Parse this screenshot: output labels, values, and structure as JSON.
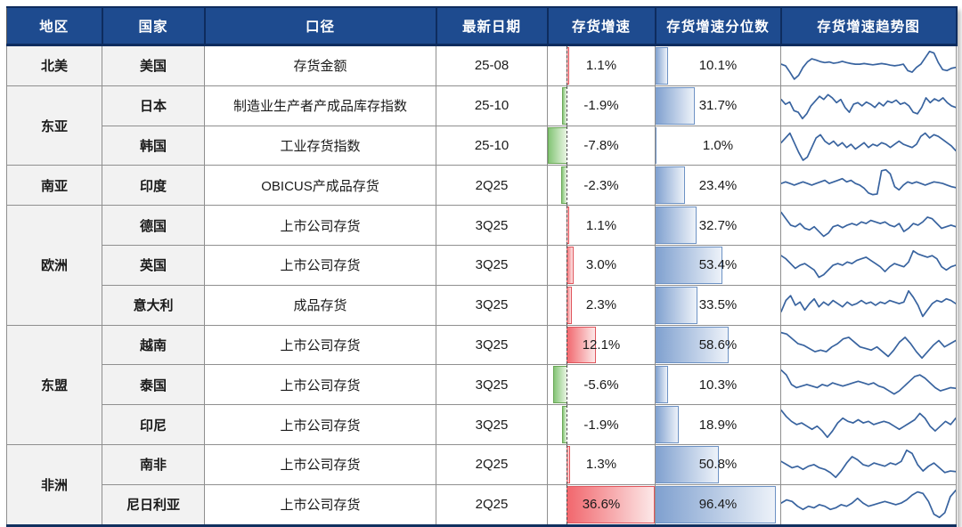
{
  "header": {
    "columns": [
      "地区",
      "国家",
      "口径",
      "最新日期",
      "存货增速",
      "存货增速分位数",
      "存货增速趋势图"
    ]
  },
  "colors": {
    "header_bg": "#1e4b8f",
    "header_divider": "#0e2c5e",
    "header_text": "#ffffff",
    "grid_line": "#8f8f8f",
    "group_line": "#595959",
    "thick_line": "#11305f",
    "cell_gray": "#f2f2f2",
    "text": "#1a1a1a",
    "zero_axis": "#4a4a4a",
    "pos_bar_start": "#f1666c",
    "pos_bar_end": "#fce8e8",
    "pos_border": "#e0555c",
    "neg_bar_start": "#85c577",
    "neg_bar_end": "#e8f5e2",
    "neg_border": "#6ba757",
    "pct_bar_start": "#7fa0cf",
    "pct_bar_end": "#edf2f9",
    "pct_border": "#6d92c4",
    "spark": "#38639f"
  },
  "growth_axis": {
    "min": -7.8,
    "max": 36.6
  },
  "rows": [
    {
      "region": "北美",
      "region_span": 1,
      "country": "美国",
      "measure": "存货金额",
      "date": "25-08",
      "growth": 1.1,
      "growth_label": "1.1%",
      "percentile": 10.1,
      "percentile_label": "10.1%",
      "spark": [
        0.55,
        0.5,
        0.3,
        0.08,
        0.2,
        0.45,
        0.62,
        0.72,
        0.68,
        0.63,
        0.6,
        0.62,
        0.58,
        0.6,
        0.64,
        0.6,
        0.57,
        0.55,
        0.55,
        0.57,
        0.55,
        0.53,
        0.55,
        0.57,
        0.55,
        0.52,
        0.5,
        0.52,
        0.55,
        0.35,
        0.3,
        0.45,
        0.55,
        0.75,
        0.95,
        0.9,
        0.6,
        0.38,
        0.35,
        0.42,
        0.45
      ]
    },
    {
      "region": "东亚",
      "region_span": 2,
      "country": "日本",
      "measure": "制造业生产者产成品库存指数",
      "date": "25-10",
      "growth": -1.9,
      "growth_label": "-1.9%",
      "percentile": 31.7,
      "percentile_label": "31.7%",
      "spark": [
        0.7,
        0.55,
        0.62,
        0.35,
        0.3,
        0.1,
        0.25,
        0.5,
        0.65,
        0.8,
        0.7,
        0.85,
        0.75,
        0.6,
        0.7,
        0.45,
        0.3,
        0.55,
        0.6,
        0.5,
        0.62,
        0.55,
        0.45,
        0.6,
        0.5,
        0.65,
        0.6,
        0.68,
        0.55,
        0.6,
        0.5,
        0.3,
        0.25,
        0.45,
        0.75,
        0.6,
        0.72,
        0.65,
        0.75,
        0.6,
        0.5,
        0.45
      ]
    },
    {
      "country": "韩国",
      "measure": "工业存货指数",
      "date": "25-10",
      "growth": -7.8,
      "growth_label": "-7.8%",
      "percentile": 1.0,
      "percentile_label": "1.0%",
      "spark": [
        0.6,
        0.75,
        0.9,
        0.6,
        0.3,
        0.05,
        0.15,
        0.45,
        0.75,
        0.85,
        0.65,
        0.55,
        0.65,
        0.5,
        0.6,
        0.45,
        0.55,
        0.4,
        0.5,
        0.6,
        0.45,
        0.55,
        0.5,
        0.6,
        0.55,
        0.45,
        0.55,
        0.65,
        0.55,
        0.5,
        0.45,
        0.55,
        0.8,
        0.9,
        0.75,
        0.85,
        0.8,
        0.7,
        0.6,
        0.5,
        0.35
      ]
    },
    {
      "region": "南亚",
      "region_span": 1,
      "country": "印度",
      "measure": "OBICUS产成品存货",
      "date": "2Q25",
      "growth": -2.3,
      "growth_label": "-2.3%",
      "percentile": 23.4,
      "percentile_label": "23.4%",
      "spark": [
        0.55,
        0.6,
        0.55,
        0.5,
        0.55,
        0.6,
        0.55,
        0.5,
        0.55,
        0.6,
        0.65,
        0.55,
        0.6,
        0.65,
        0.7,
        0.6,
        0.65,
        0.55,
        0.5,
        0.4,
        0.25,
        0.2,
        0.22,
        0.95,
        0.98,
        0.85,
        0.45,
        0.35,
        0.5,
        0.6,
        0.55,
        0.6,
        0.55,
        0.5,
        0.55,
        0.6,
        0.58,
        0.55,
        0.5,
        0.45,
        0.42
      ]
    },
    {
      "region": "欧洲",
      "region_span": 3,
      "country": "德国",
      "measure": "上市公司存货",
      "date": "3Q25",
      "growth": 1.1,
      "growth_label": "1.1%",
      "percentile": 32.7,
      "percentile_label": "32.7%",
      "spark": [
        0.9,
        0.7,
        0.5,
        0.45,
        0.55,
        0.4,
        0.35,
        0.45,
        0.3,
        0.15,
        0.25,
        0.45,
        0.5,
        0.42,
        0.5,
        0.55,
        0.5,
        0.6,
        0.55,
        0.65,
        0.6,
        0.55,
        0.6,
        0.5,
        0.45,
        0.55,
        0.3,
        0.4,
        0.55,
        0.5,
        0.6,
        0.75,
        0.7,
        0.55,
        0.4,
        0.45,
        0.5,
        0.45
      ]
    },
    {
      "country": "英国",
      "measure": "上市公司存货",
      "date": "3Q25",
      "growth": 3.0,
      "growth_label": "3.0%",
      "percentile": 53.4,
      "percentile_label": "53.4%",
      "spark": [
        0.8,
        0.7,
        0.55,
        0.4,
        0.5,
        0.55,
        0.45,
        0.35,
        0.12,
        0.2,
        0.35,
        0.5,
        0.55,
        0.5,
        0.6,
        0.55,
        0.65,
        0.7,
        0.75,
        0.65,
        0.55,
        0.45,
        0.3,
        0.45,
        0.55,
        0.5,
        0.45,
        0.6,
        0.95,
        0.85,
        0.8,
        0.75,
        0.8,
        0.7,
        0.45,
        0.35,
        0.45,
        0.5
      ]
    },
    {
      "country": "意大利",
      "measure": "成品存货",
      "date": "3Q25",
      "growth": 2.3,
      "growth_label": "2.3%",
      "percentile": 33.5,
      "percentile_label": "33.5%",
      "spark": [
        0.3,
        0.65,
        0.8,
        0.5,
        0.6,
        0.35,
        0.55,
        0.7,
        0.45,
        0.6,
        0.5,
        0.65,
        0.55,
        0.45,
        0.6,
        0.5,
        0.55,
        0.65,
        0.55,
        0.6,
        0.5,
        0.6,
        0.55,
        0.65,
        0.6,
        0.55,
        0.6,
        0.95,
        0.75,
        0.5,
        0.15,
        0.35,
        0.55,
        0.65,
        0.6,
        0.7,
        0.65,
        0.55
      ]
    },
    {
      "region": "东盟",
      "region_span": 3,
      "country": "越南",
      "measure": "上市公司存货",
      "date": "3Q25",
      "growth": 12.1,
      "growth_label": "12.1%",
      "percentile": 58.6,
      "percentile_label": "58.6%",
      "spark": [
        0.9,
        0.85,
        0.7,
        0.55,
        0.5,
        0.4,
        0.3,
        0.35,
        0.3,
        0.45,
        0.55,
        0.7,
        0.75,
        0.6,
        0.45,
        0.4,
        0.35,
        0.45,
        0.3,
        0.15,
        0.35,
        0.6,
        0.75,
        0.55,
        0.3,
        0.1,
        0.3,
        0.5,
        0.65,
        0.45,
        0.55,
        0.65
      ]
    },
    {
      "country": "泰国",
      "measure": "上市公司存货",
      "date": "3Q25",
      "growth": -5.6,
      "growth_label": "-5.6%",
      "percentile": 10.3,
      "percentile_label": "10.3%",
      "spark": [
        0.95,
        0.8,
        0.5,
        0.4,
        0.45,
        0.5,
        0.45,
        0.4,
        0.5,
        0.45,
        0.55,
        0.5,
        0.45,
        0.5,
        0.55,
        0.6,
        0.55,
        0.5,
        0.55,
        0.45,
        0.4,
        0.3,
        0.2,
        0.3,
        0.45,
        0.6,
        0.75,
        0.8,
        0.7,
        0.55,
        0.4,
        0.3,
        0.35,
        0.4,
        0.38
      ]
    },
    {
      "country": "印尼",
      "measure": "上市公司存货",
      "date": "3Q25",
      "growth": -1.9,
      "growth_label": "-1.9%",
      "percentile": 18.9,
      "percentile_label": "18.9%",
      "spark": [
        0.95,
        0.75,
        0.6,
        0.5,
        0.55,
        0.45,
        0.35,
        0.45,
        0.3,
        0.1,
        0.3,
        0.55,
        0.7,
        0.6,
        0.55,
        0.65,
        0.55,
        0.6,
        0.5,
        0.55,
        0.6,
        0.55,
        0.45,
        0.35,
        0.45,
        0.55,
        0.65,
        0.85,
        0.7,
        0.45,
        0.3,
        0.45,
        0.6,
        0.5,
        0.7
      ]
    },
    {
      "region": "非洲",
      "region_span": 2,
      "country": "南非",
      "measure": "上市公司存货",
      "date": "2Q25",
      "growth": 1.3,
      "growth_label": "1.3%",
      "percentile": 50.8,
      "percentile_label": "50.8%",
      "spark": [
        0.6,
        0.5,
        0.4,
        0.45,
        0.35,
        0.45,
        0.5,
        0.4,
        0.35,
        0.25,
        0.1,
        0.3,
        0.55,
        0.75,
        0.65,
        0.5,
        0.45,
        0.55,
        0.5,
        0.45,
        0.55,
        0.5,
        0.6,
        0.95,
        0.85,
        0.5,
        0.3,
        0.45,
        0.55,
        0.4,
        0.25,
        0.3,
        0.28
      ]
    },
    {
      "country": "尼日利亚",
      "measure": "上市公司存货",
      "date": "2Q25",
      "growth": 36.6,
      "growth_label": "36.6%",
      "percentile": 96.4,
      "percentile_label": "96.4%",
      "spark": [
        0.55,
        0.65,
        0.6,
        0.45,
        0.35,
        0.45,
        0.4,
        0.5,
        0.45,
        0.35,
        0.4,
        0.5,
        0.45,
        0.55,
        0.7,
        0.55,
        0.45,
        0.5,
        0.55,
        0.6,
        0.55,
        0.5,
        0.55,
        0.65,
        0.8,
        0.9,
        0.85,
        0.6,
        0.2,
        0.1,
        0.25,
        0.75,
        0.95
      ]
    }
  ],
  "chart_data": {
    "type": "table",
    "columns": [
      "地区",
      "国家",
      "口径",
      "最新日期",
      "存货增速",
      "存货增速分位数",
      "存货增速趋势图"
    ],
    "rows": [
      [
        "北美",
        "美国",
        "存货金额",
        "25-08",
        "1.1%",
        "10.1%"
      ],
      [
        "东亚",
        "日本",
        "制造业生产者产成品库存指数",
        "25-10",
        "-1.9%",
        "31.7%"
      ],
      [
        "东亚",
        "韩国",
        "工业存货指数",
        "25-10",
        "-7.8%",
        "1.0%"
      ],
      [
        "南亚",
        "印度",
        "OBICUS产成品存货",
        "2Q25",
        "-2.3%",
        "23.4%"
      ],
      [
        "欧洲",
        "德国",
        "上市公司存货",
        "3Q25",
        "1.1%",
        "32.7%"
      ],
      [
        "欧洲",
        "英国",
        "上市公司存货",
        "3Q25",
        "3.0%",
        "53.4%"
      ],
      [
        "欧洲",
        "意大利",
        "成品存货",
        "3Q25",
        "2.3%",
        "33.5%"
      ],
      [
        "东盟",
        "越南",
        "上市公司存货",
        "3Q25",
        "12.1%",
        "58.6%"
      ],
      [
        "东盟",
        "泰国",
        "上市公司存货",
        "3Q25",
        "-5.6%",
        "10.3%"
      ],
      [
        "东盟",
        "印尼",
        "上市公司存货",
        "3Q25",
        "-1.9%",
        "18.9%"
      ],
      [
        "非洲",
        "南非",
        "上市公司存货",
        "2Q25",
        "1.3%",
        "50.8%"
      ],
      [
        "非洲",
        "尼日利亚",
        "上市公司存货",
        "2Q25",
        "36.6%",
        "96.4%"
      ]
    ],
    "growth_bar_axis": {
      "min": -7.8,
      "max": 36.6
    },
    "legend_position": "none",
    "grid": true
  }
}
